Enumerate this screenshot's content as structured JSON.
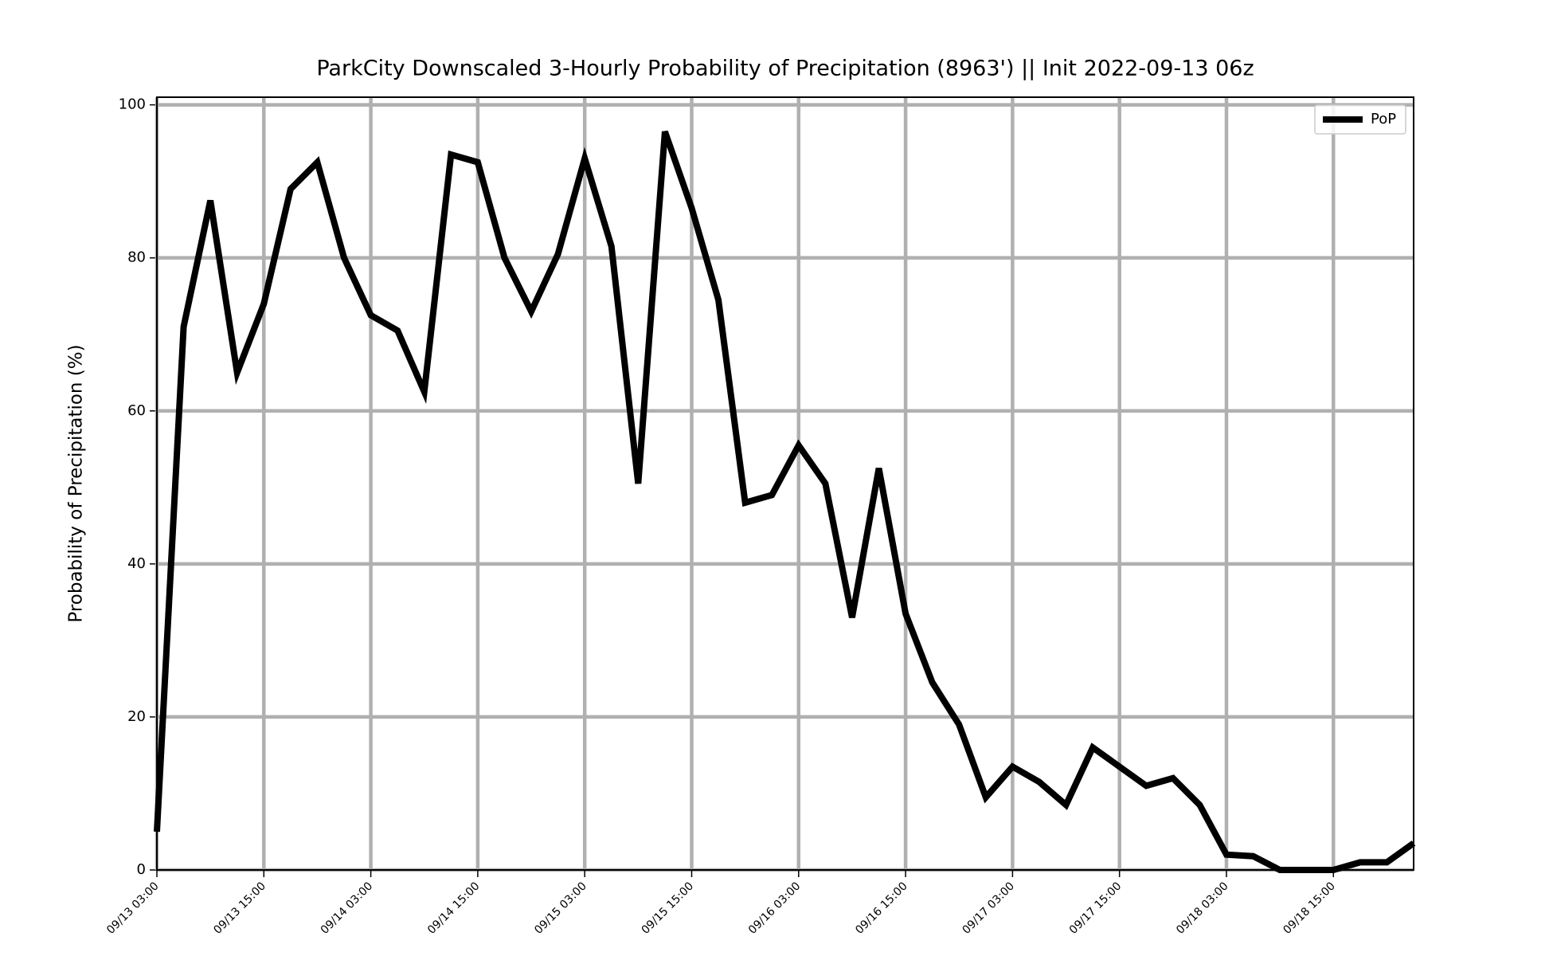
{
  "chart_data": {
    "type": "line",
    "title": "ParkCity Downscaled 3-Hourly Probability of Precipitation (8963') || Init 2022-09-13 06z",
    "y_label": "Probability of Precipitation (%)",
    "x": [
      "09/13 03:00",
      "09/13 06:00",
      "09/13 09:00",
      "09/13 12:00",
      "09/13 15:00",
      "09/13 18:00",
      "09/13 21:00",
      "09/14 00:00",
      "09/14 03:00",
      "09/14 06:00",
      "09/14 09:00",
      "09/14 12:00",
      "09/14 15:00",
      "09/14 18:00",
      "09/14 21:00",
      "09/15 00:00",
      "09/15 03:00",
      "09/15 06:00",
      "09/15 09:00",
      "09/15 12:00",
      "09/15 15:00",
      "09/15 18:00",
      "09/15 21:00",
      "09/16 00:00",
      "09/16 03:00",
      "09/16 06:00",
      "09/16 09:00",
      "09/16 12:00",
      "09/16 15:00",
      "09/16 18:00",
      "09/16 21:00",
      "09/17 00:00",
      "09/17 03:00",
      "09/17 06:00",
      "09/17 09:00",
      "09/17 12:00",
      "09/17 15:00",
      "09/17 18:00",
      "09/17 21:00",
      "09/18 00:00",
      "09/18 03:00",
      "09/18 06:00",
      "09/18 09:00",
      "09/18 12:00",
      "09/18 15:00",
      "09/18 18:00",
      "09/18 21:00",
      "09/19 00:00"
    ],
    "series": [
      {
        "name": "PoP",
        "color": "#000000",
        "values": [
          5,
          71,
          87.5,
          65,
          74,
          89,
          92.5,
          80,
          72.5,
          70.5,
          62.5,
          93.5,
          92.5,
          80,
          73,
          80.5,
          93,
          81.5,
          50.5,
          96.5,
          86.5,
          74.5,
          48,
          49,
          55.5,
          50.5,
          33,
          52.5,
          33.5,
          24.5,
          19,
          9.5,
          13.5,
          11.5,
          8.5,
          16,
          13.5,
          11,
          12,
          8.5,
          2,
          1.8,
          0,
          0,
          0,
          1,
          1,
          3.5
        ]
      }
    ],
    "xticks": [
      "09/13 03:00",
      "09/13 15:00",
      "09/14 03:00",
      "09/14 15:00",
      "09/15 03:00",
      "09/15 15:00",
      "09/16 03:00",
      "09/16 15:00",
      "09/17 03:00",
      "09/17 15:00",
      "09/18 03:00",
      "09/18 15:00"
    ],
    "ylim": [
      0,
      101
    ],
    "yticks": [
      0,
      20,
      40,
      60,
      80,
      100
    ],
    "grid": true,
    "legend": "upper right"
  }
}
